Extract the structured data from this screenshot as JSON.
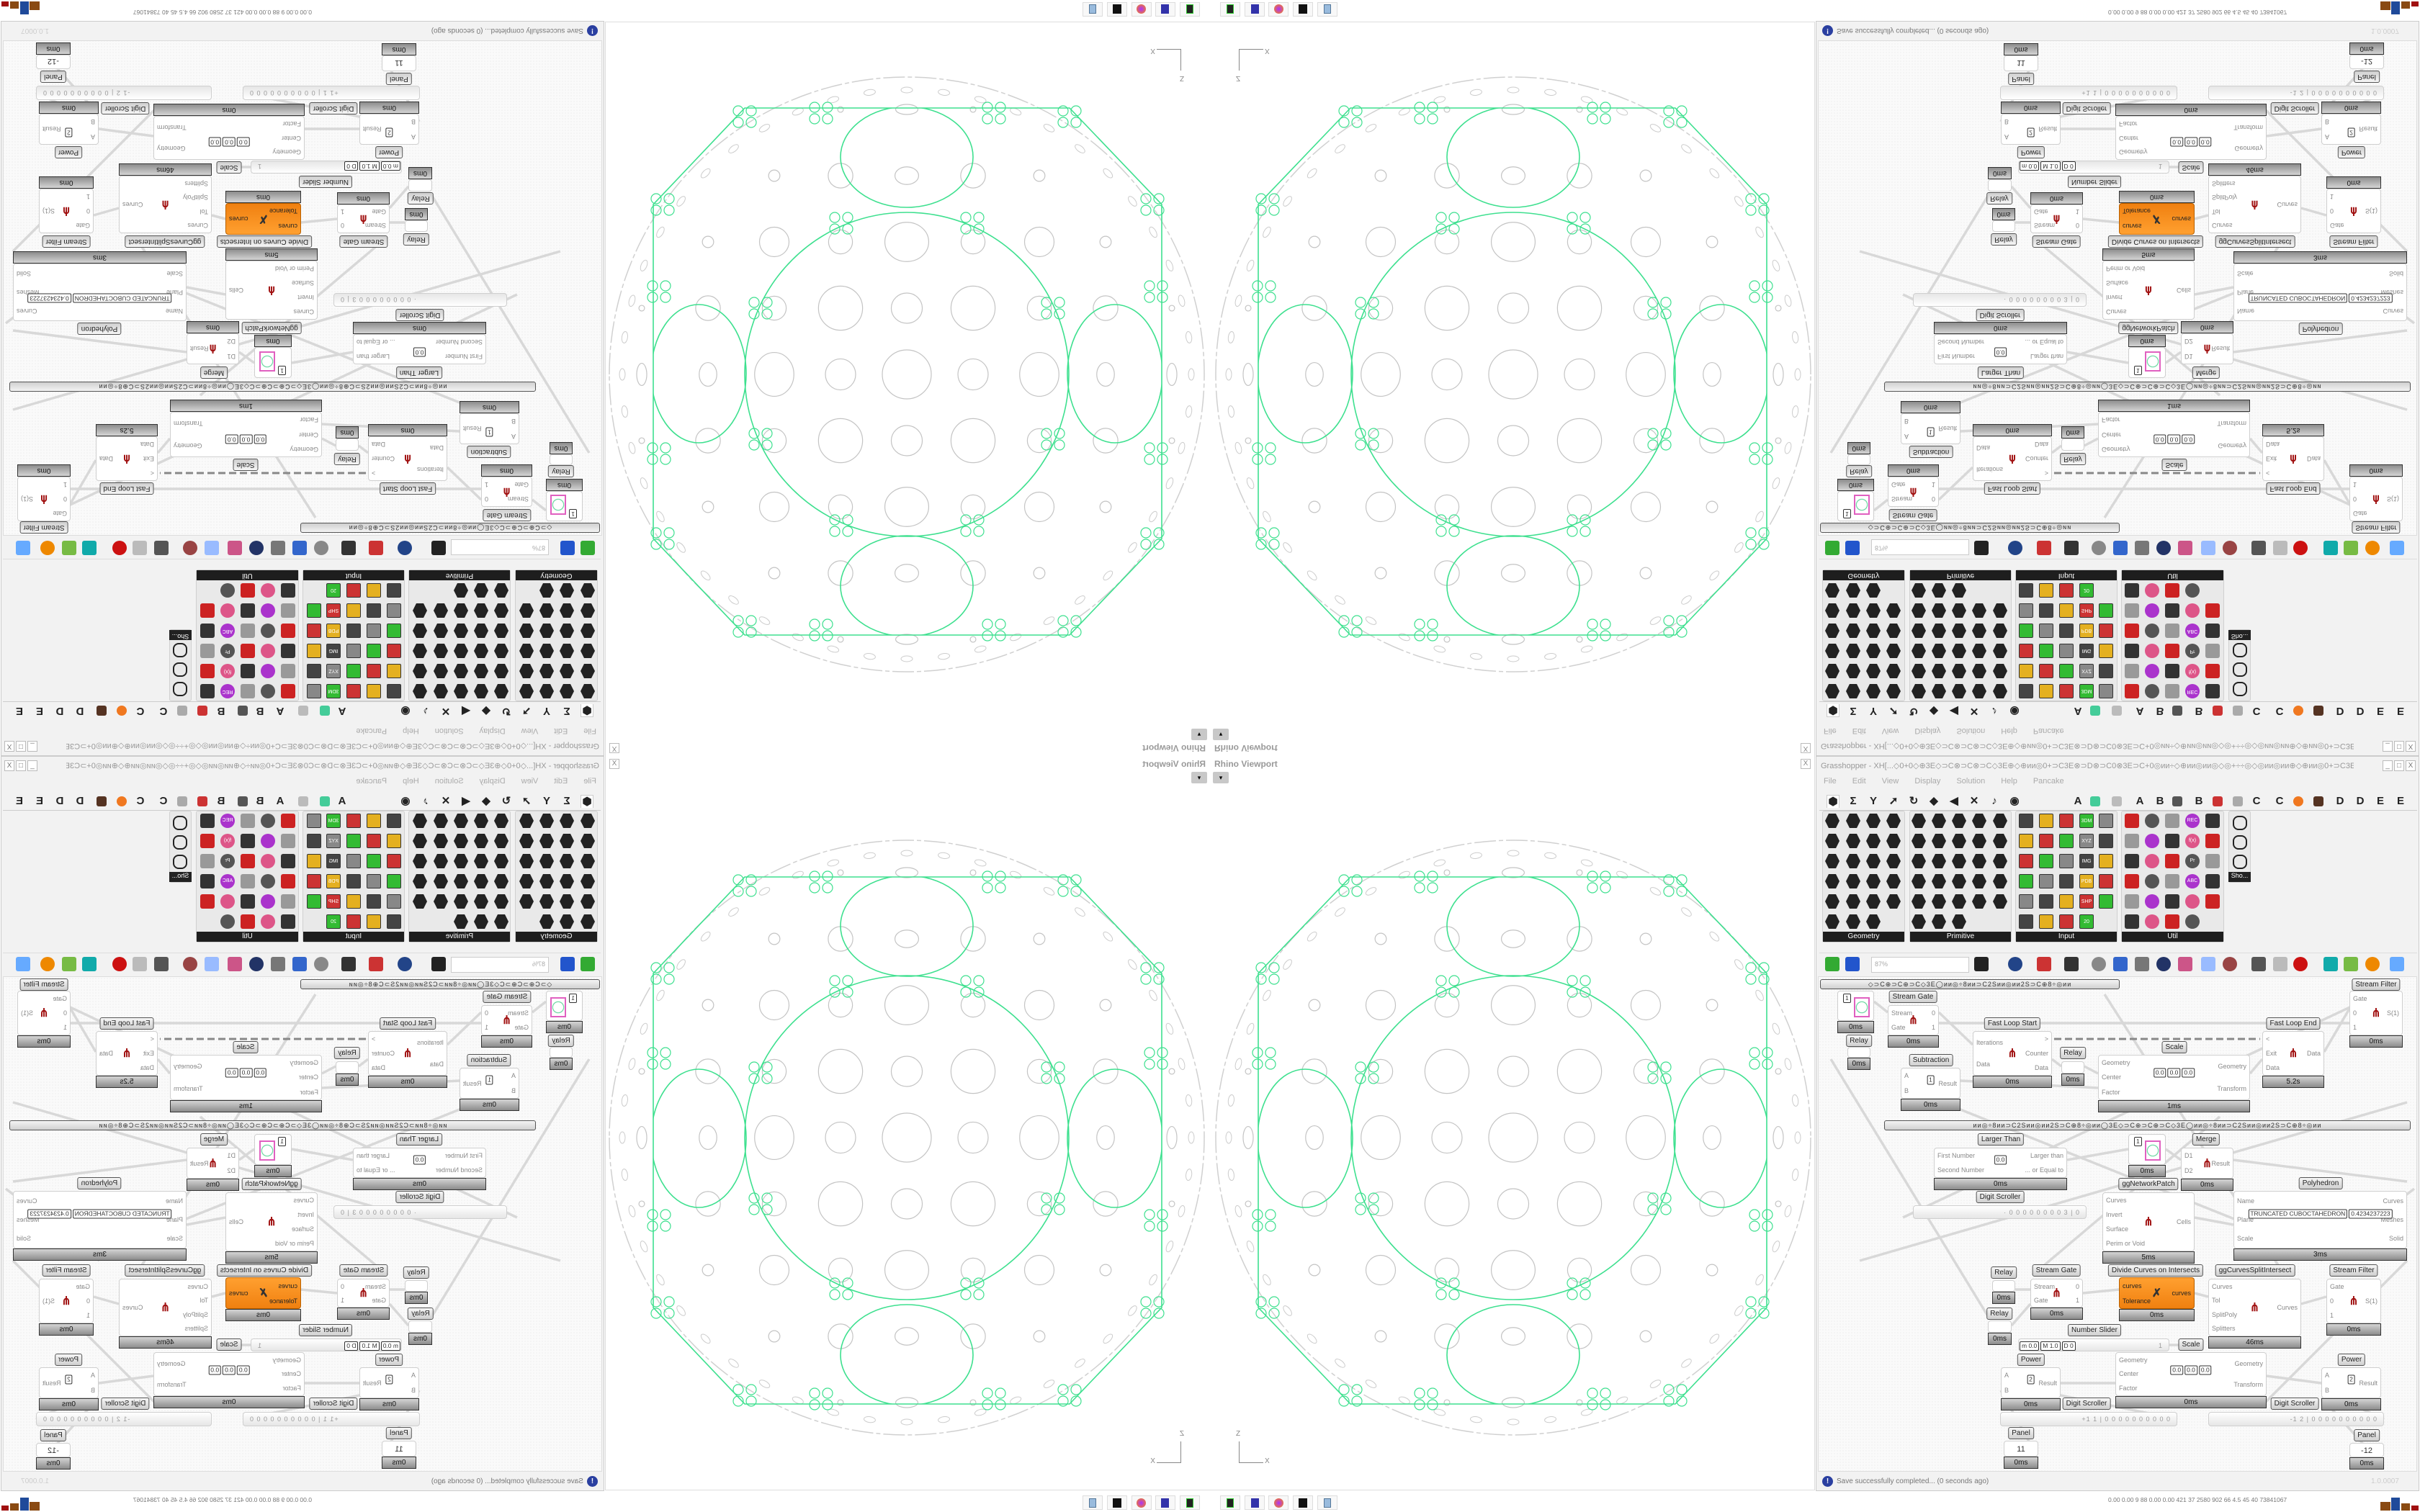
{
  "viewport": {
    "title": "Rhino Viewport",
    "axis_z": "Z",
    "axis_x": "X",
    "close": "X",
    "dropdown": "▾"
  },
  "grasshopper": {
    "title": "Grasshopper - XH[...◇0+0◇⊕3E◇⊃C⊗⊃C⊗⊃C◇3E⊕◇⊕ии◎0+⊃C3E⊗⊃D⊗⊃C0⊗3E⊃C+0◎ии÷◇⊕ии◎ии◎◇◎+÷÷◎◇◎ии◎ии⊕◇⊕ии◎0+⊃C3E⊗⊃D...",
    "window_buttons": [
      "_",
      "□",
      "X"
    ],
    "menu": [
      "File",
      "Edit",
      "View",
      "Display",
      "Solution",
      "Help",
      "Pancake"
    ],
    "tab_letters": [
      "A",
      "A",
      "B",
      "B",
      "C",
      "C",
      "D",
      "D",
      "E",
      "E"
    ],
    "palettes": [
      {
        "name": "Geometry",
        "icon_count": 23
      },
      {
        "name": "Primitive",
        "icon_count": 28
      },
      {
        "name": "Input",
        "icon_count": 29,
        "icon_texts": [
          "3DM",
          "XYZ",
          "IMG",
          "PDB",
          "SHP",
          "20"
        ]
      },
      {
        "name": "Util",
        "icon_count": 29,
        "icon_texts": [
          "REC",
          "f(x)",
          "Pr",
          "ABC"
        ]
      }
    ],
    "show_tile": "Sho...",
    "toolbar": {
      "zoom": "87%"
    },
    "group_label": "◇⊃C⊕⊃C⊕⊃C◇3E◯ии◎÷8ии⊃C2Sии◎ии2S⊃C⊕8÷◎ии",
    "group_label_2": "ии◎÷8ии⊃C2Sии◎ии2S⊃C⊕8÷◎ии◯3E◇⊃C⊕⊃C⊕⊃C◇3E◯ии◎÷8ии⊃C2Sии◎ии2S⊃C⊕8÷◎ии",
    "status": "Save successfully completed... (0 seconds ago)",
    "version": "1.0.0007",
    "components": [
      {
        "type": "toggle",
        "value": "1",
        "time": "0ms"
      },
      {
        "type": "relay",
        "label": "Relay",
        "time": "0ms"
      },
      {
        "label": "Stream Gate",
        "inputs": [
          "Stream",
          "Gate"
        ],
        "outputs": [
          "0",
          "1"
        ],
        "time": "0ms"
      },
      {
        "label": "Fast Loop Start",
        "inputs": [
          "Iterations",
          "Data"
        ],
        "outputs": [
          ">",
          "Counter",
          "Data"
        ],
        "time": "0ms"
      },
      {
        "type": "relay",
        "label": "Relay",
        "time": "0ms"
      },
      {
        "label": "Subtraction",
        "inputs": [
          "A",
          "B"
        ],
        "outputs": [
          "Result"
        ],
        "time": "0ms",
        "boxes": [
          "1"
        ]
      },
      {
        "label": "Scale",
        "inputs": [
          "Geometry",
          "Center",
          "Factor"
        ],
        "outputs": [
          "Geometry",
          "Transform"
        ],
        "time": "1ms",
        "boxes": [
          "0.0",
          "0.0",
          "0.0"
        ]
      },
      {
        "label": "Fast Loop End",
        "inputs": [
          "<",
          "Exit",
          "Data"
        ],
        "outputs": [
          "Data"
        ],
        "time": "5.2s"
      },
      {
        "label": "Stream Filter",
        "inputs": [
          "Gate",
          "0",
          "1"
        ],
        "outputs": [
          "S(1)"
        ],
        "time": "0ms"
      },
      {
        "label": "Larger Than",
        "inputs": [
          "First Number",
          "Second Number"
        ],
        "outputs": [
          "Larger than",
          "... or Equal to"
        ],
        "time": "0ms",
        "boxes": [
          "0.0"
        ]
      },
      {
        "type": "toggle",
        "value": "1",
        "time": "0ms"
      },
      {
        "label": "Merge",
        "inputs": [
          "D1",
          "D2"
        ],
        "outputs": [
          "Result"
        ],
        "time": "0ms"
      },
      {
        "label": "ggNetworkPatch",
        "inputs": [
          "Curves",
          "Invert",
          "Surface",
          "Perim or Void"
        ],
        "outputs": [
          "Cells"
        ],
        "time": "5ms"
      },
      {
        "label": "Polyhedron",
        "inputs": [
          "Name",
          "Plane",
          "Scale"
        ],
        "outputs": [
          "Curves",
          "Meshes",
          "Solid"
        ],
        "time": "3ms",
        "boxes": [
          "TRUNCATED CUBOCTAHEDRON",
          "0.4234237223"
        ]
      },
      {
        "type": "scroller",
        "label": "Digit Scroller",
        "value": "· 0 0 0 0 0 0 0 0 3 | 0"
      },
      {
        "type": "relay",
        "label": "Relay",
        "time": "0ms"
      },
      {
        "type": "relay",
        "label": "Relay",
        "time": "0ms"
      },
      {
        "label": "Stream Gate",
        "inputs": [
          "Stream",
          "Gate"
        ],
        "outputs": [
          "0",
          "1"
        ],
        "time": "0ms"
      },
      {
        "label": "Divide Curves on Intersects",
        "inputs": [
          "curves",
          "Tolerance"
        ],
        "outputs": [
          "curves"
        ],
        "time": "0ms",
        "orange": true
      },
      {
        "label": "ggCurvesSplitIntersect",
        "inputs": [
          "Curves",
          "Tol",
          "SplitPoly",
          "Splitters"
        ],
        "outputs": [
          "Curves"
        ],
        "time": "46ms"
      },
      {
        "label": "Stream Filter",
        "inputs": [
          "Gate",
          "0",
          "1"
        ],
        "outputs": [
          "S(1)"
        ],
        "time": "0ms"
      },
      {
        "type": "slider",
        "label": "Number Slider",
        "boxes": [
          "m 0.0",
          "M 1.0",
          "D 0"
        ],
        "value": "1"
      },
      {
        "label": "Scale",
        "inputs": [
          "Geometry",
          "Center",
          "Factor"
        ],
        "outputs": [
          "Geometry",
          "Transform"
        ],
        "time": "0ms",
        "boxes": [
          "0.0",
          "0.0",
          "0.0"
        ]
      },
      {
        "label": "Power",
        "inputs": [
          "A",
          "B"
        ],
        "outputs": [
          "Result"
        ],
        "time": "0ms",
        "boxes": [
          "2"
        ]
      },
      {
        "label": "Power",
        "inputs": [
          "A",
          "B"
        ],
        "outputs": [
          "Result"
        ],
        "time": "0ms",
        "boxes": [
          "2"
        ]
      },
      {
        "type": "scroller",
        "label": "Digit Scroller",
        "value": "+1 1 | 0 0 0 0 0 0 0 0 0 0"
      },
      {
        "type": "scroller",
        "label": "Digit Scroller",
        "value": "-1 2 | 0 0 0 0 0 0 0 0 0 0"
      },
      {
        "type": "panel",
        "label": "Panel",
        "value": "11",
        "time": "0ms"
      },
      {
        "type": "panel",
        "label": "Panel",
        "value": "-12",
        "time": "0ms"
      }
    ]
  },
  "perf_text": "0.00 0.00  9   88  0.00 0.00 421  37  2580 902  66  4.5  45  40  73841067",
  "colors": {
    "accent_green": "#3ee08f",
    "orange": "#f7931e",
    "grey_line": "#c8c8c8"
  }
}
